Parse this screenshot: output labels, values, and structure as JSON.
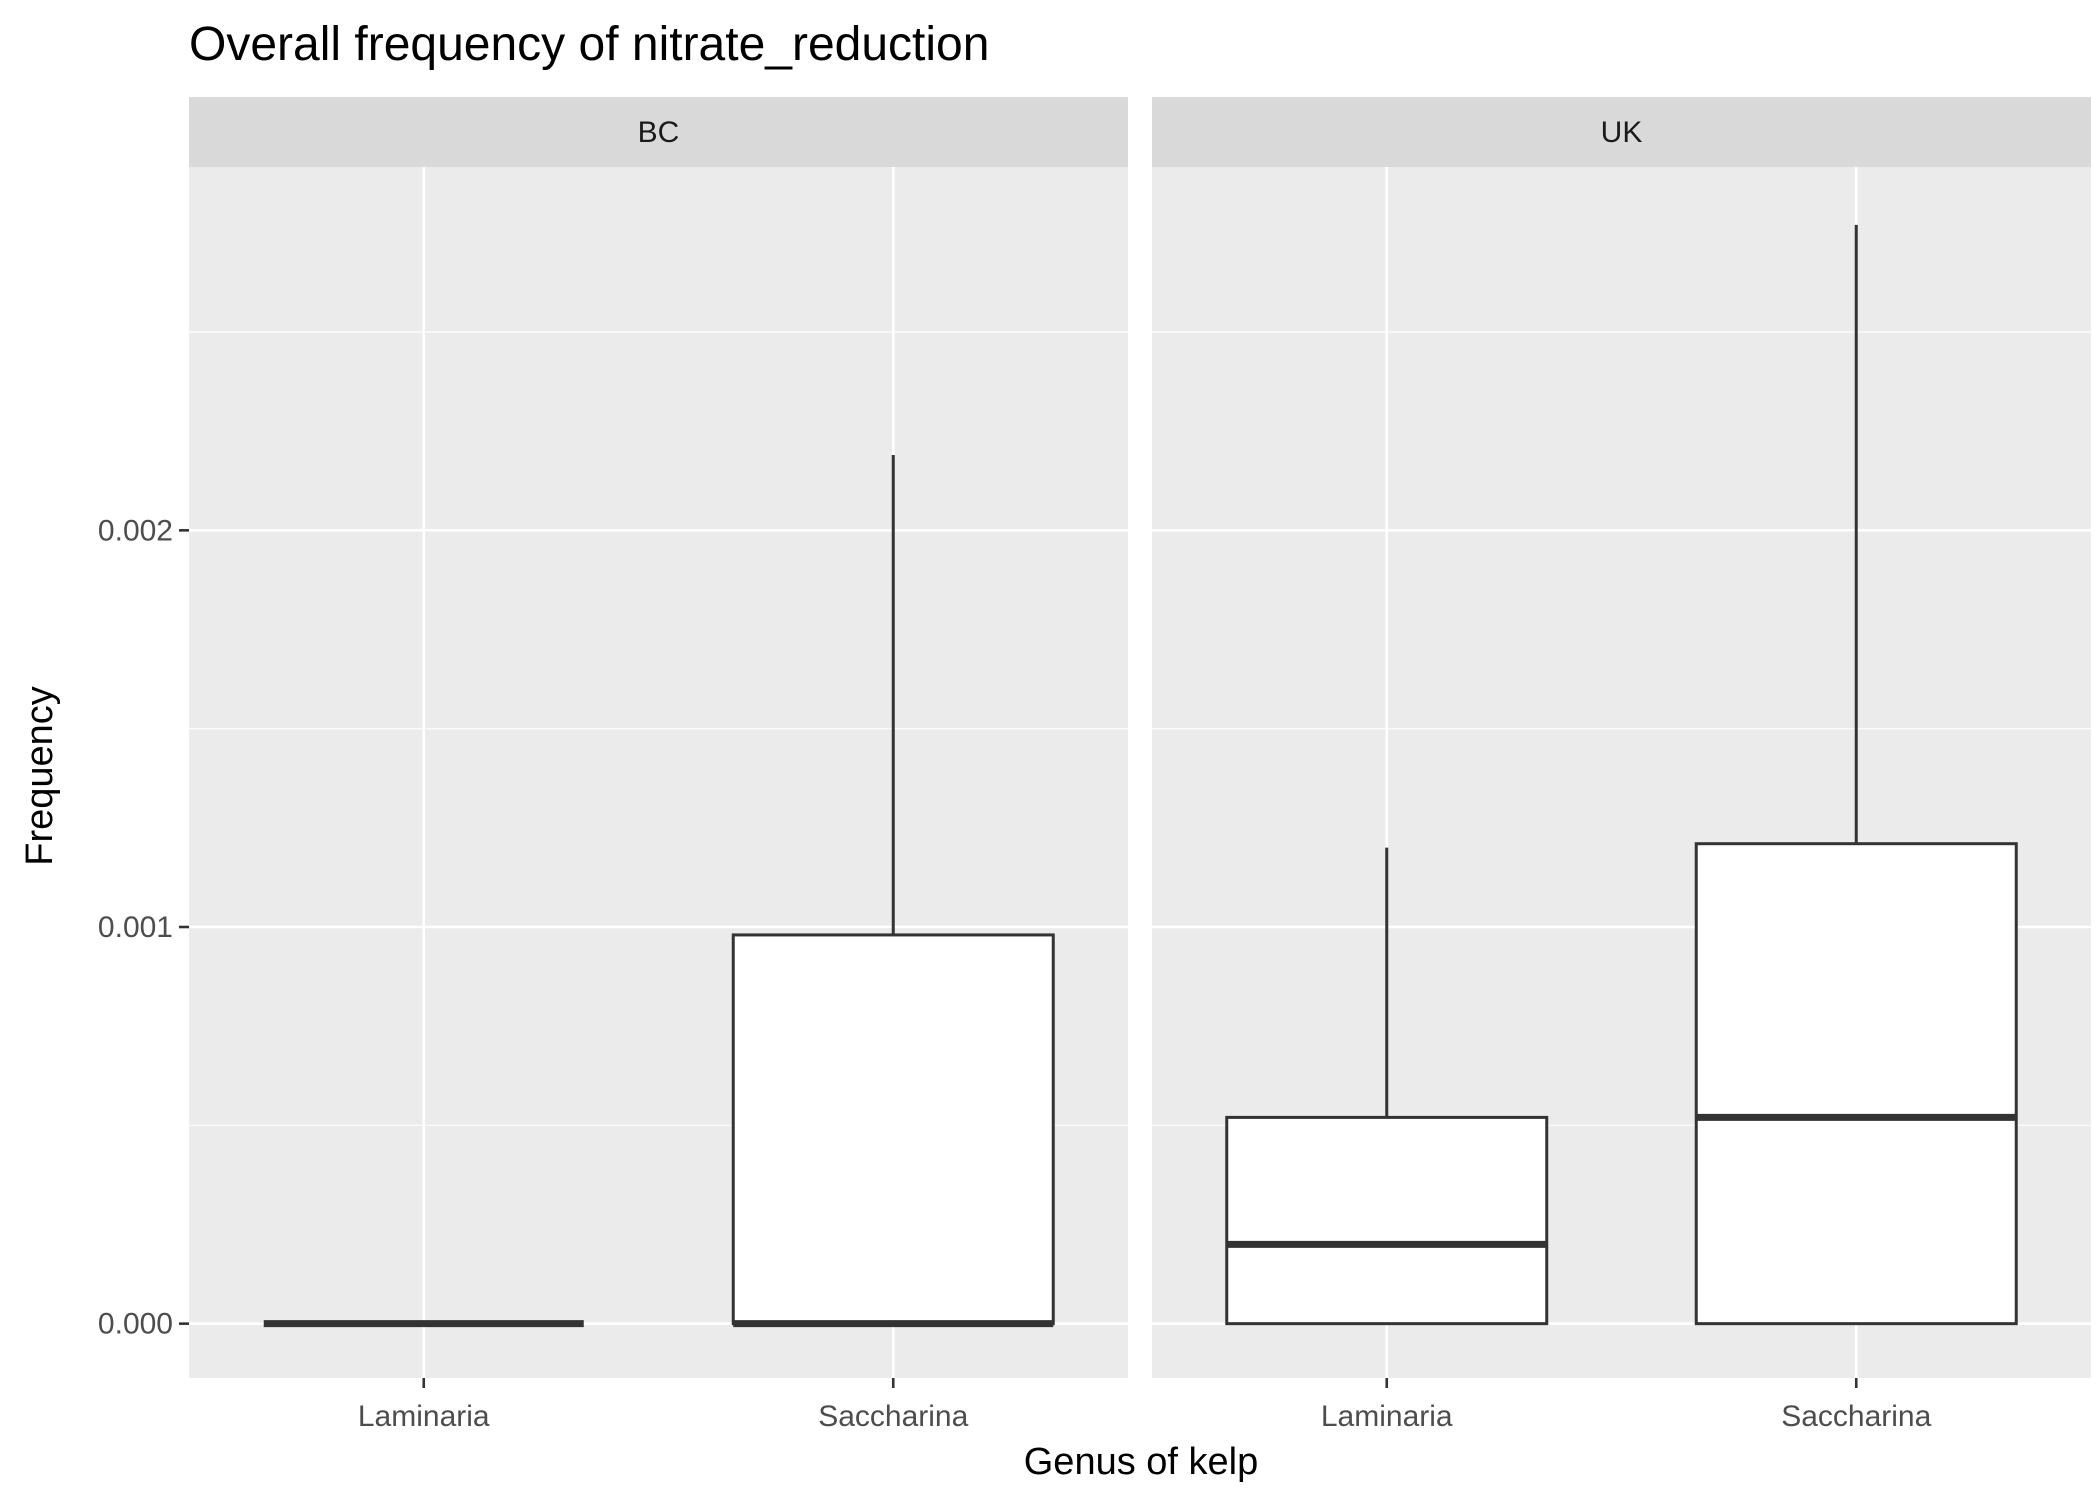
{
  "chart_data": {
    "type": "boxplot",
    "title": "Overall frequency of nitrate_reduction",
    "xlabel": "Genus of kelp",
    "ylabel": "Frequency",
    "categories": [
      "Laminaria",
      "Saccharina"
    ],
    "ylim": [
      -0.000137,
      0.002916
    ],
    "y_ticks": [
      0,
      0.001,
      0.002
    ],
    "y_tick_labels": [
      "0.000",
      "0.001",
      "0.002"
    ],
    "grid": true,
    "panels": [
      {
        "facet": "BC",
        "boxes": [
          {
            "category": "Laminaria",
            "min": 0,
            "q1": 0,
            "median": 0,
            "q3": 0,
            "max": 0
          },
          {
            "category": "Saccharina",
            "min": 0,
            "q1": 0,
            "median": 0,
            "q3": 0.00098,
            "max": 0.00219
          }
        ]
      },
      {
        "facet": "UK",
        "boxes": [
          {
            "category": "Laminaria",
            "min": 0,
            "q1": 0,
            "median": 0.0002,
            "q3": 0.00052,
            "max": 0.0012
          },
          {
            "category": "Saccharina",
            "min": 0,
            "q1": 0,
            "median": 0.00052,
            "q3": 0.00121,
            "max": 0.00277
          }
        ]
      }
    ]
  },
  "colors": {
    "panel_background": "#ebebeb",
    "strip_background": "#d9d9d9",
    "grid": "#ffffff",
    "box_fill": "#ffffff",
    "box_stroke": "#333333"
  }
}
